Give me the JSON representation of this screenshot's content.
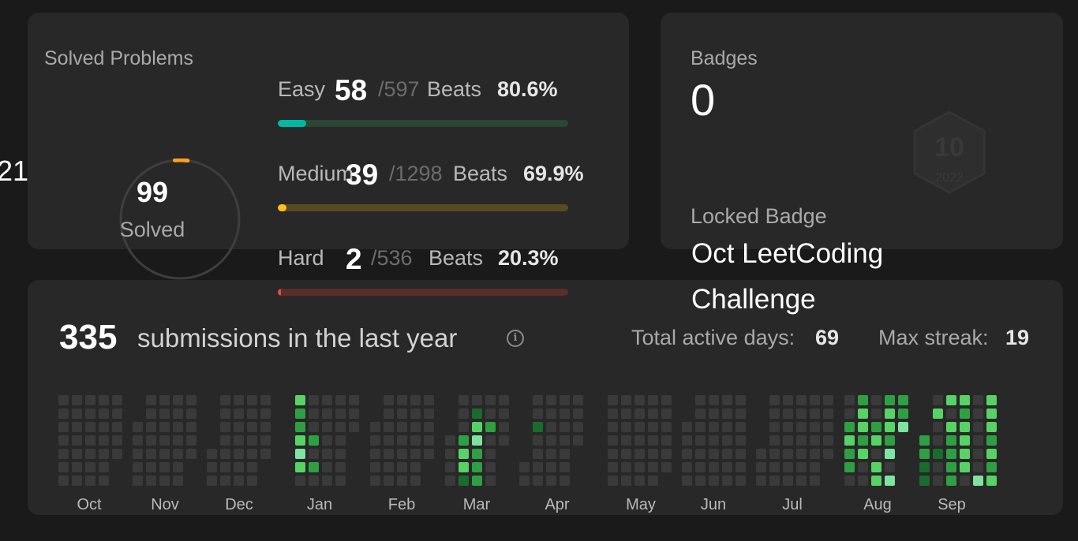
{
  "edge_fragment": "21",
  "solved": {
    "title": "Solved Problems",
    "count": "99",
    "count_label": "Solved",
    "ring_color": "#ffa116",
    "difficulties": [
      {
        "name": "Easy",
        "solved": "58",
        "total": "/597",
        "beats_label": "Beats",
        "beats": "80.6%",
        "progress": 0.097,
        "fill_color": "#00b8a3",
        "track_color": "#2b4634"
      },
      {
        "name": "Medium",
        "solved": "39",
        "total": "/1298",
        "beats_label": "Beats",
        "beats": "69.9%",
        "progress": 0.03,
        "fill_color": "#ffc01e",
        "track_color": "#5a4a1f"
      },
      {
        "name": "Hard",
        "solved": "2",
        "total": "/536",
        "beats_label": "Beats",
        "beats": "20.3%",
        "progress": 0.004,
        "fill_color": "#ef4743",
        "track_color": "#5a2e2b"
      }
    ]
  },
  "badges": {
    "title": "Badges",
    "count": "0",
    "locked_label": "Locked Badge",
    "locked_name_line1": "Oct LeetCoding",
    "locked_name_line2": "Challenge",
    "badge_art_number": "10",
    "badge_art_year": "2022",
    "badge_icon": "hexagon-badge-icon"
  },
  "activity": {
    "submission_count": "335",
    "submission_text": "submissions in the last year",
    "info_icon": "info-icon",
    "active_days_label": "Total active days:",
    "active_days": "69",
    "max_streak_label": "Max streak:",
    "max_streak": "19",
    "months": [
      "Oct",
      "Nov",
      "Dec",
      "Jan",
      "Feb",
      "Mar",
      "Apr",
      "May",
      "Jun",
      "Jul",
      "Aug",
      "Sep"
    ],
    "colors": {
      "empty": "#3a3a3a",
      "level1": "#196c2e",
      "level2": "#2ea043",
      "level3": "#56d364",
      "level4": "#7ee2a0"
    }
  }
}
